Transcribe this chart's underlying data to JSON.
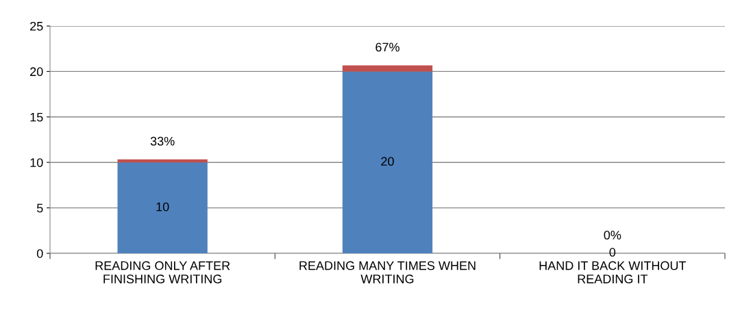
{
  "chart_data": {
    "type": "bar",
    "stacked": true,
    "categories": [
      "READING ONLY AFTER\nFINISHING WRITING",
      "READING MANY TIMES WHEN\nWRITING",
      "HAND IT BACK WITHOUT\nREADING IT"
    ],
    "series": [
      {
        "color": "#4f81bd",
        "values": [
          10,
          20,
          0
        ],
        "value_labels": [
          "10",
          "20",
          "0"
        ]
      },
      {
        "color": "#c0504d",
        "values": [
          0.33,
          0.67,
          0
        ],
        "value_labels": [
          "33%",
          "67%",
          "0%"
        ]
      }
    ],
    "ylim": [
      0,
      25
    ],
    "yticks": [
      0,
      5,
      10,
      15,
      20,
      25
    ],
    "grid": "y",
    "legend": false
  }
}
